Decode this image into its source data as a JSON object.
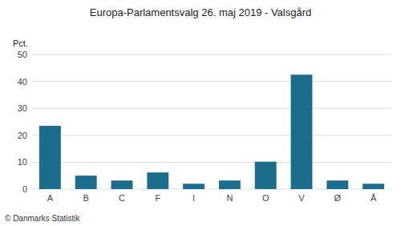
{
  "chart_data": {
    "type": "bar",
    "title": "Europa-Parlamentsvalg 26. maj 2019 - Valsgård",
    "ylabel": "Pct.",
    "categories": [
      "A",
      "B",
      "C",
      "F",
      "I",
      "N",
      "O",
      "V",
      "Ø",
      "Å"
    ],
    "values": [
      23.5,
      5.0,
      3.2,
      6.2,
      2.0,
      3.2,
      10.2,
      42.5,
      3.2,
      2.0
    ],
    "color": "#1a6e8c",
    "ylim": [
      0,
      50
    ],
    "yticks": [
      0,
      10,
      20,
      30,
      40,
      50
    ],
    "grid": true,
    "annotations": [
      "© Danmarks Statistik"
    ]
  }
}
